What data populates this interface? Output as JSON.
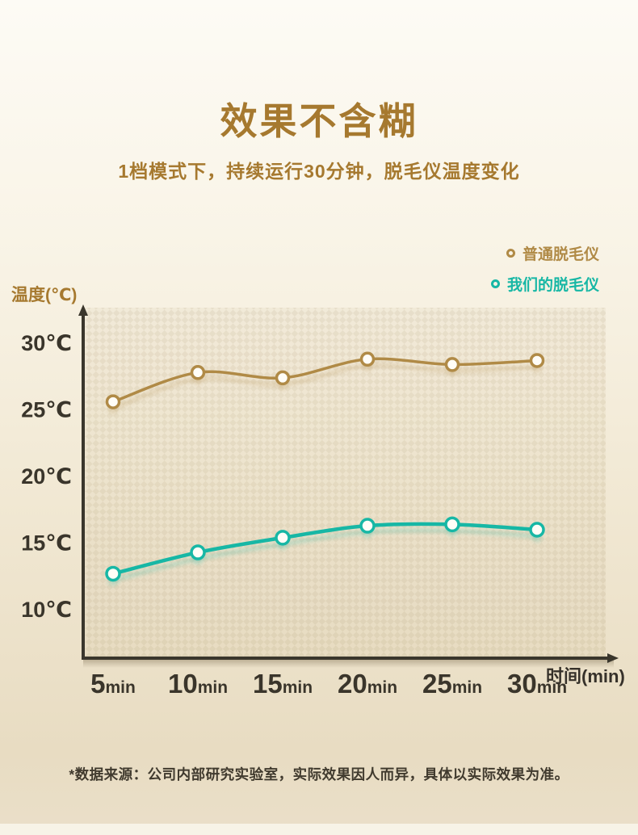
{
  "page": {
    "title": "效果不含糊",
    "subtitle": "1档模式下，持续运行30分钟，脱毛仪温度变化",
    "footnote": "*数据来源：公司内部研究实验室，实际效果因人而异，具体以实际效果为准。"
  },
  "chart_data": {
    "type": "line",
    "x": [
      5,
      10,
      15,
      20,
      25,
      30
    ],
    "x_tick_labels": [
      "5min",
      "10min",
      "15min",
      "20min",
      "25min",
      "30min"
    ],
    "x_tick_unit": "min",
    "series": [
      {
        "name": "普通脱毛仪",
        "color": "#b08a46",
        "values": [
          25.6,
          27.8,
          27.4,
          28.8,
          28.4,
          28.7
        ]
      },
      {
        "name": "我们的脱毛仪",
        "color": "#17b7a5",
        "values": [
          12.7,
          14.3,
          15.4,
          16.3,
          16.4,
          16.0
        ]
      }
    ],
    "xlabel": "时间(min)",
    "ylabel": "温度(℃)",
    "y_ticks": [
      10,
      15,
      20,
      25,
      30
    ],
    "y_tick_suffix": "℃",
    "ylim": [
      8,
      32
    ],
    "legend_position": "top-right",
    "grid": false,
    "plot_texture": "diagonal-checker",
    "marker_style": "open-circle"
  },
  "colors": {
    "title": "#a6792f",
    "subtitle": "#a6792f",
    "ylabel": "#a6792f",
    "xlabel": "#36312a",
    "tick_text": "#3a352b",
    "axis": "#3a362c",
    "footnote": "#403a2e",
    "background_top": "#fdfbf5",
    "background_bottom": "#e8dcc2"
  }
}
